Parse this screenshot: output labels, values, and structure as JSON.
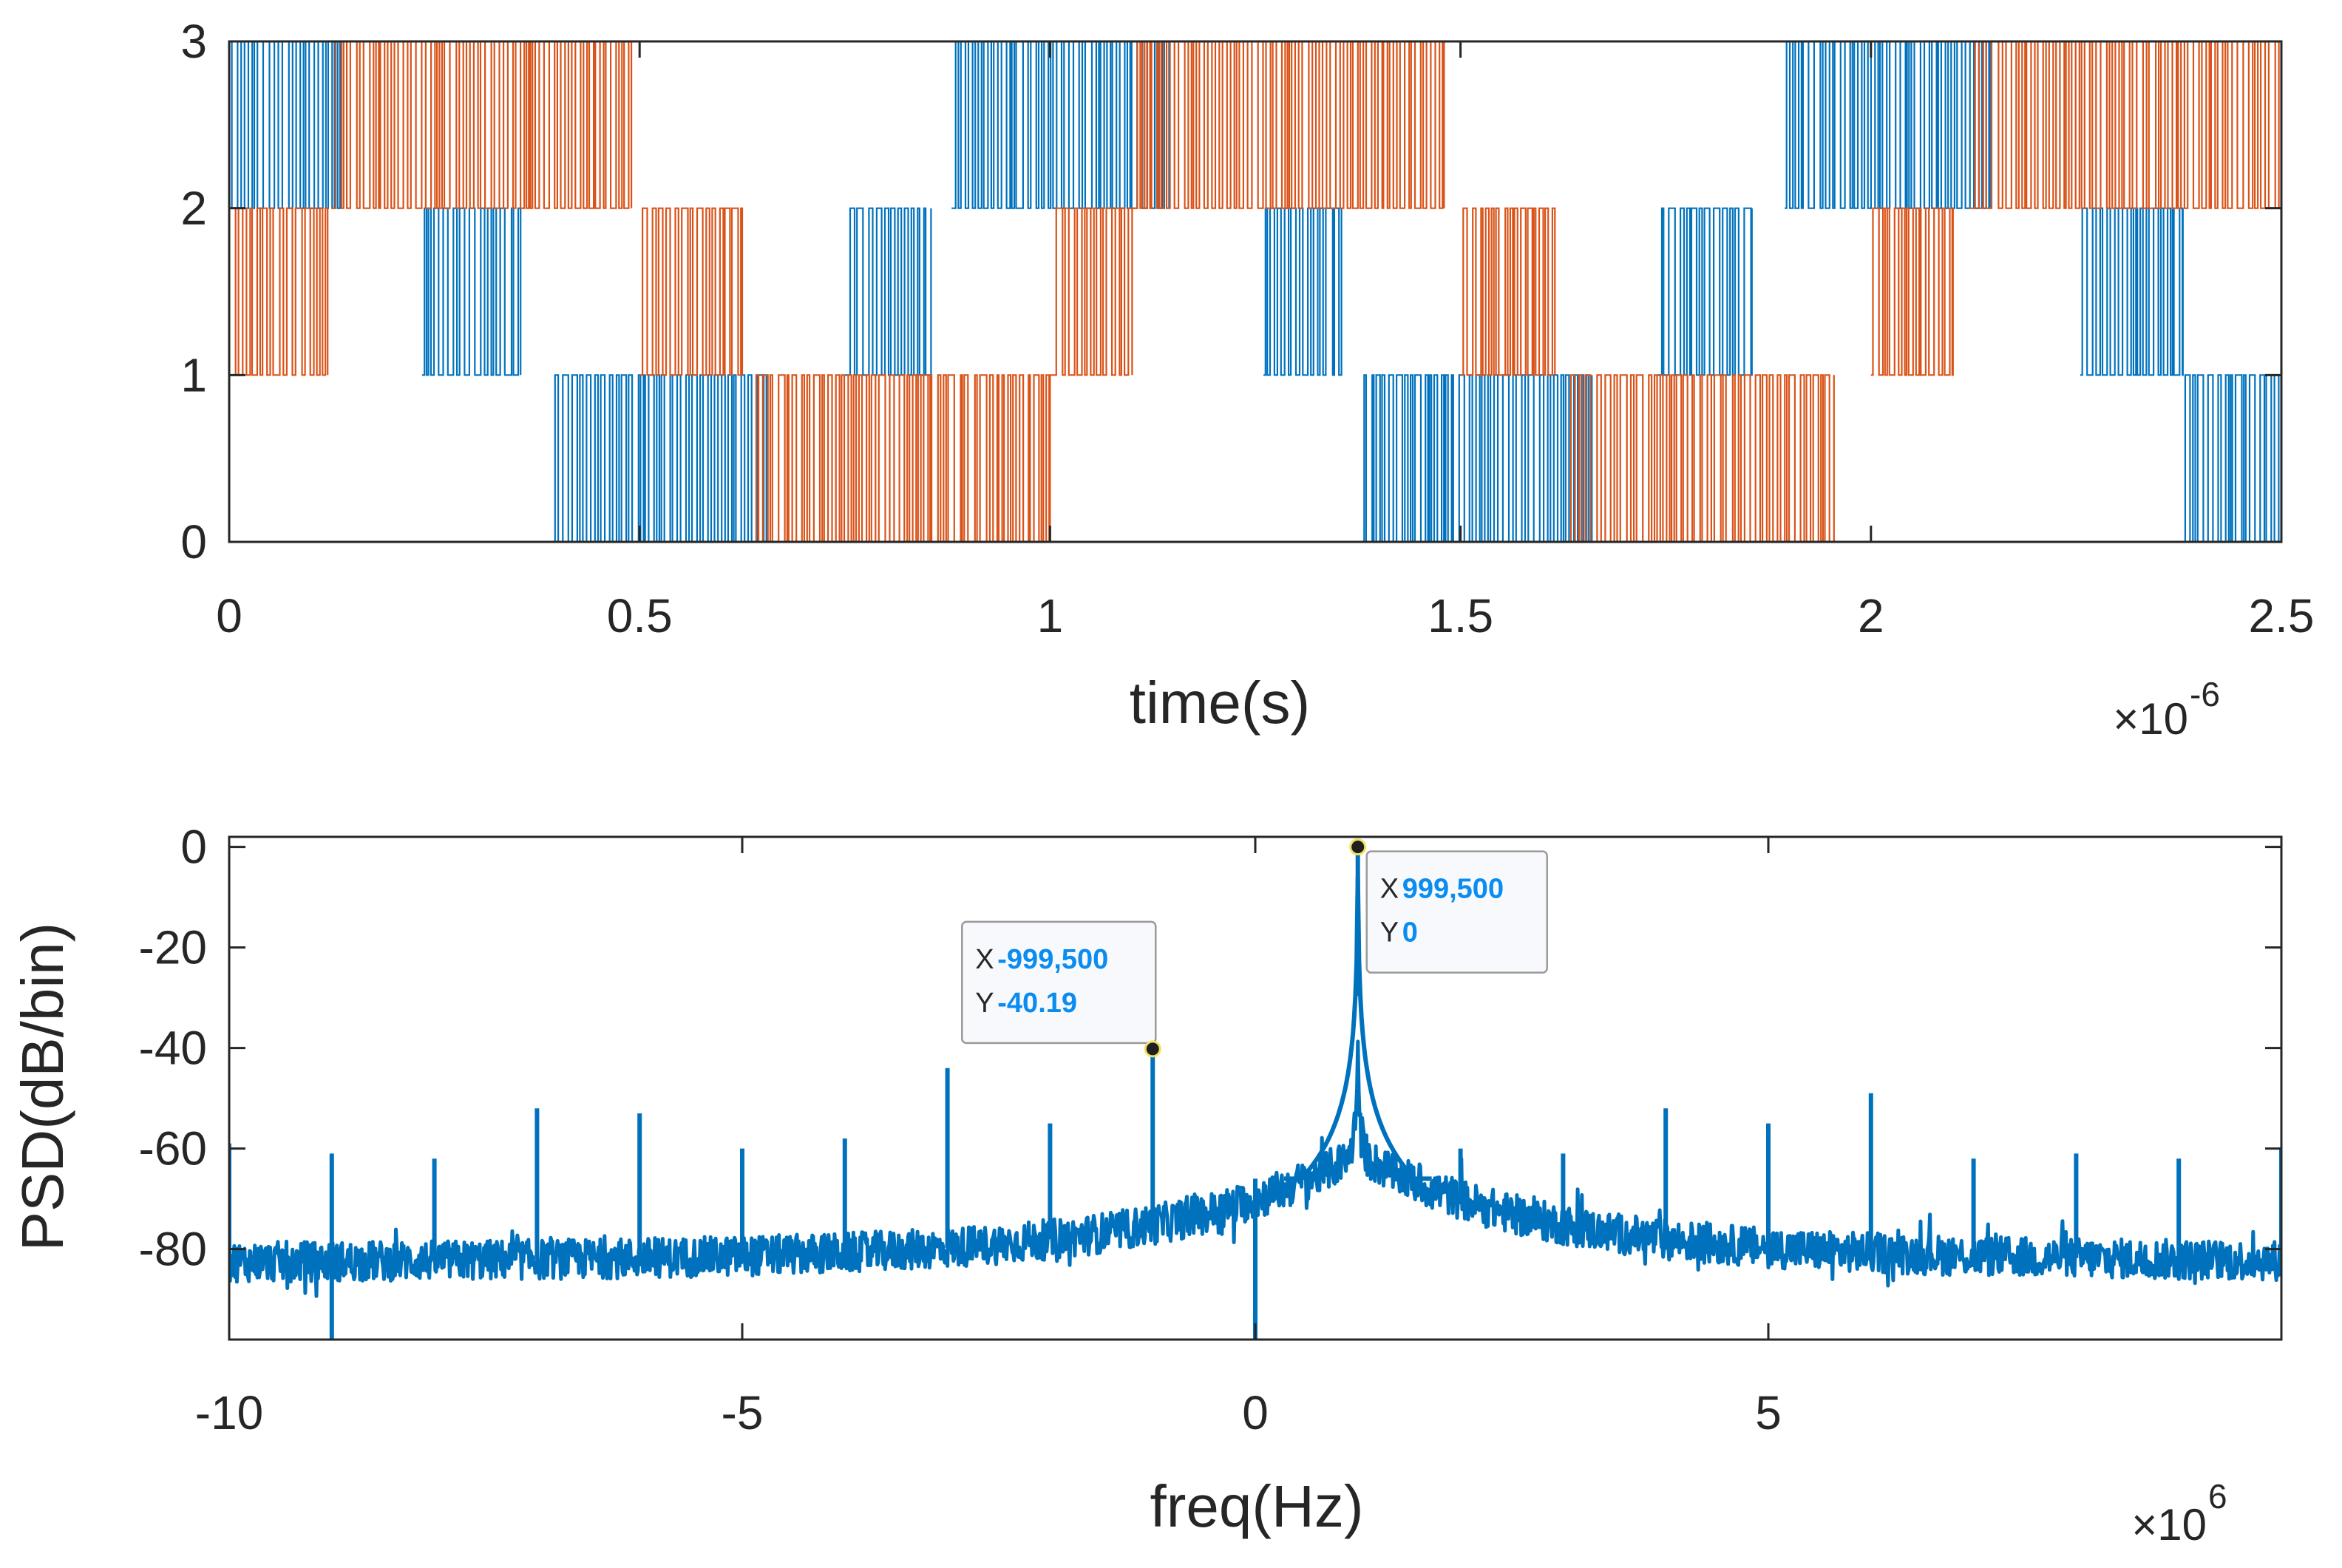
{
  "chart_data": [
    {
      "type": "line",
      "subtype": "stepped-pwm",
      "xlabel": "time(s)",
      "ylabel": "",
      "x_multiplier": "×10",
      "x_multiplier_exp": "-6",
      "xlim": [
        0,
        2.5
      ],
      "ylim": [
        0,
        3
      ],
      "xticks": [
        "0",
        "0.5",
        "1",
        "1.5",
        "2",
        "2.5"
      ],
      "xtick_values": [
        0,
        0.5,
        1,
        1.5,
        2,
        2.5
      ],
      "yticks": [
        "0",
        "1",
        "2",
        "3"
      ],
      "ytick_values": [
        0,
        1,
        2,
        3
      ],
      "grid": false,
      "colors": {
        "series1": "#0072bd",
        "series2": "#d95319",
        "axis": "#262626"
      },
      "series": [
        {
          "color": "#0072bd",
          "bands": [
            {
              "level": [
                2,
                3
              ],
              "start": 0.0,
              "end": 0.135
            },
            {
              "level": [
                1,
                2
              ],
              "start": 0.235,
              "end": 0.355
            },
            {
              "level": [
                0,
                1
              ],
              "start": 0.39,
              "end": 0.655
            },
            {
              "level": [
                1,
                2
              ],
              "start": 0.75,
              "end": 0.855
            },
            {
              "level": [
                2,
                3
              ],
              "start": 0.88,
              "end": 1.145
            },
            {
              "level": [
                1,
                2
              ],
              "start": 1.26,
              "end": 1.355
            },
            {
              "level": [
                0,
                1
              ],
              "start": 1.375,
              "end": 1.66
            },
            {
              "level": [
                1,
                2
              ],
              "start": 1.74,
              "end": 1.855
            },
            {
              "level": [
                2,
                3
              ],
              "start": 1.895,
              "end": 2.145
            },
            {
              "level": [
                1,
                2
              ],
              "start": 2.255,
              "end": 2.38
            },
            {
              "level": [
                0,
                1
              ],
              "start": 2.38,
              "end": 2.5
            }
          ]
        },
        {
          "color": "#d95319",
          "bands": [
            {
              "level": [
                1,
                2
              ],
              "start": 0.0,
              "end": 0.12
            },
            {
              "level": [
                2,
                3
              ],
              "start": 0.125,
              "end": 0.49
            },
            {
              "level": [
                1,
                2
              ],
              "start": 0.5,
              "end": 0.625
            },
            {
              "level": [
                0,
                1
              ],
              "start": 0.64,
              "end": 1.0
            },
            {
              "level": [
                1,
                2
              ],
              "start": 1.0,
              "end": 1.1
            },
            {
              "level": [
                2,
                3
              ],
              "start": 1.1,
              "end": 1.48
            },
            {
              "level": [
                1,
                2
              ],
              "start": 1.5,
              "end": 1.615
            },
            {
              "level": [
                0,
                1
              ],
              "start": 1.63,
              "end": 1.955
            },
            {
              "level": [
                1,
                2
              ],
              "start": 2.0,
              "end": 2.1
            },
            {
              "level": [
                2,
                3
              ],
              "start": 2.12,
              "end": 2.5
            }
          ]
        }
      ]
    },
    {
      "type": "line",
      "xlabel": "freq(Hz)",
      "ylabel": "PSD(dB/bin)",
      "x_multiplier": "×10",
      "x_multiplier_exp": "6",
      "xlim": [
        -10,
        10
      ],
      "ylim": [
        -98,
        2
      ],
      "xticks": [
        "-10",
        "-5",
        "0",
        "5"
      ],
      "xtick_values": [
        -10,
        -5,
        0,
        5
      ],
      "yticks": [
        "0",
        "-20",
        "-40",
        "-60",
        "-80"
      ],
      "ytick_values": [
        0,
        -20,
        -40,
        -60,
        -80
      ],
      "grid": false,
      "colors": {
        "line": "#0072bd",
        "datatip_value": "#0a8cf0",
        "axis": "#262626"
      },
      "noise_floor_db": -83,
      "peak_freq": 0.9995,
      "notch": {
        "x": 0,
        "y": -98
      },
      "spurs": [
        {
          "x": -10,
          "y": -59
        },
        {
          "x": -9,
          "y": -61
        },
        {
          "x": -8,
          "y": -62
        },
        {
          "x": -7,
          "y": -52
        },
        {
          "x": -6,
          "y": -53
        },
        {
          "x": -5,
          "y": -60
        },
        {
          "x": -4,
          "y": -58
        },
        {
          "x": -3,
          "y": -44
        },
        {
          "x": -2,
          "y": -55
        },
        {
          "x": -0.9995,
          "y": -40.19
        },
        {
          "x": 0.9995,
          "y": 0
        },
        {
          "x": 2,
          "y": -60
        },
        {
          "x": 3,
          "y": -61
        },
        {
          "x": 4,
          "y": -52
        },
        {
          "x": 5,
          "y": -55
        },
        {
          "x": 6,
          "y": -49
        },
        {
          "x": 7,
          "y": -62
        },
        {
          "x": 8,
          "y": -61
        },
        {
          "x": 9,
          "y": -62
        },
        {
          "x": 10,
          "y": -60
        }
      ],
      "datatips": [
        {
          "x_label": "X",
          "x_value": "999,500",
          "y_label": "Y",
          "y_value": "0",
          "x": 0.9995,
          "y": 0
        },
        {
          "x_label": "X",
          "x_value": "-999,500",
          "y_label": "Y",
          "y_value": "-40.19",
          "x": -0.9995,
          "y": -40.19
        }
      ]
    }
  ]
}
